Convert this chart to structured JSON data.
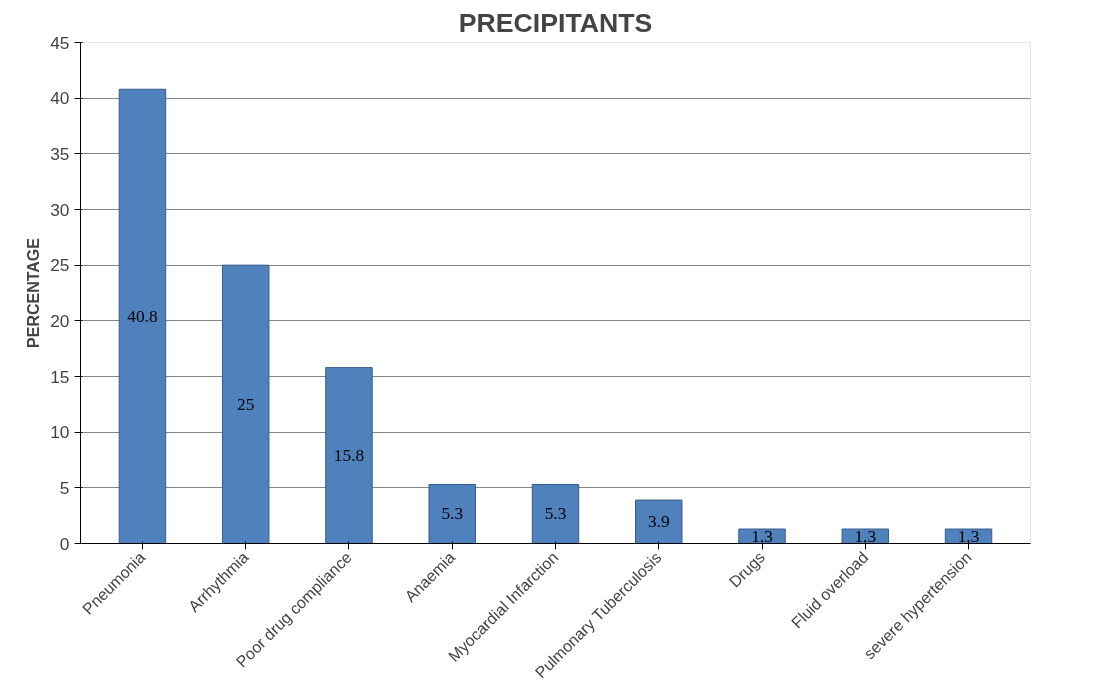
{
  "chart_data": {
    "type": "bar",
    "title": "PRECIPITANTS",
    "ylabel": "PERCENTAGE",
    "categories": [
      "Pneumonia",
      "Arrhythmia",
      "Poor drug compliance",
      "Anaemia",
      "Myocardial Infarction",
      "Pulmonary Tuberculosis",
      "Drugs",
      "Fluid overload",
      "severe hypertension"
    ],
    "values": [
      40.8,
      25,
      15.8,
      5.3,
      5.3,
      3.9,
      1.3,
      1.3,
      1.3
    ],
    "color": "#4f81bd",
    "ylim": [
      0,
      45
    ],
    "yticks": [
      0,
      5,
      10,
      15,
      20,
      25,
      30,
      35,
      40,
      45
    ],
    "grid": "y",
    "data_labels": true
  }
}
